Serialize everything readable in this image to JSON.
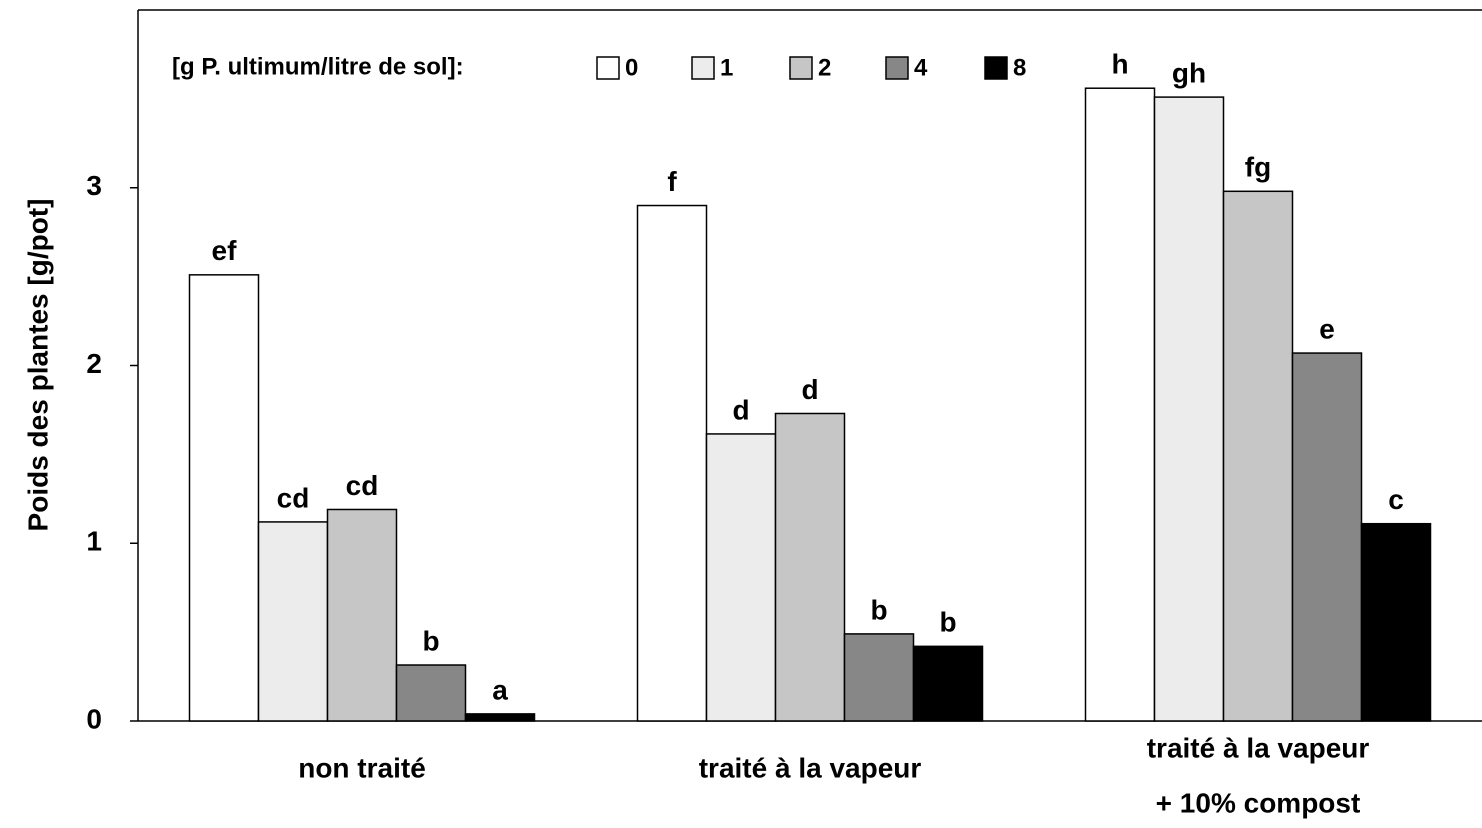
{
  "chart_data": {
    "type": "bar",
    "y_label": "Poids des plantes [g/pot]",
    "legend_title": "[g P. ultimum/litre de sol]:",
    "categories": [
      [
        "non traité"
      ],
      [
        "traité à la vapeur"
      ],
      [
        "traité à la vapeur",
        "+ 10% compost"
      ]
    ],
    "series": [
      {
        "name": "0",
        "color": "#ffffff",
        "values": [
          2.51,
          2.9,
          3.56
        ],
        "annotations": [
          "ef",
          "f",
          "h"
        ]
      },
      {
        "name": "1",
        "color": "#ececec",
        "values": [
          1.12,
          1.615,
          3.51
        ],
        "annotations": [
          "cd",
          "d",
          "gh"
        ]
      },
      {
        "name": "2",
        "color": "#c6c6c6",
        "values": [
          1.19,
          1.73,
          2.98
        ],
        "annotations": [
          "cd",
          "d",
          "fg"
        ]
      },
      {
        "name": "4",
        "color": "#878787",
        "values": [
          0.315,
          0.49,
          2.07
        ],
        "annotations": [
          "b",
          "b",
          "e"
        ]
      },
      {
        "name": "8",
        "color": "#000000",
        "values": [
          0.04,
          0.42,
          1.11
        ],
        "annotations": [
          "a",
          "b",
          "c"
        ]
      }
    ],
    "ylim": [
      0,
      4
    ],
    "yticks": [
      0,
      1,
      2,
      3
    ]
  }
}
